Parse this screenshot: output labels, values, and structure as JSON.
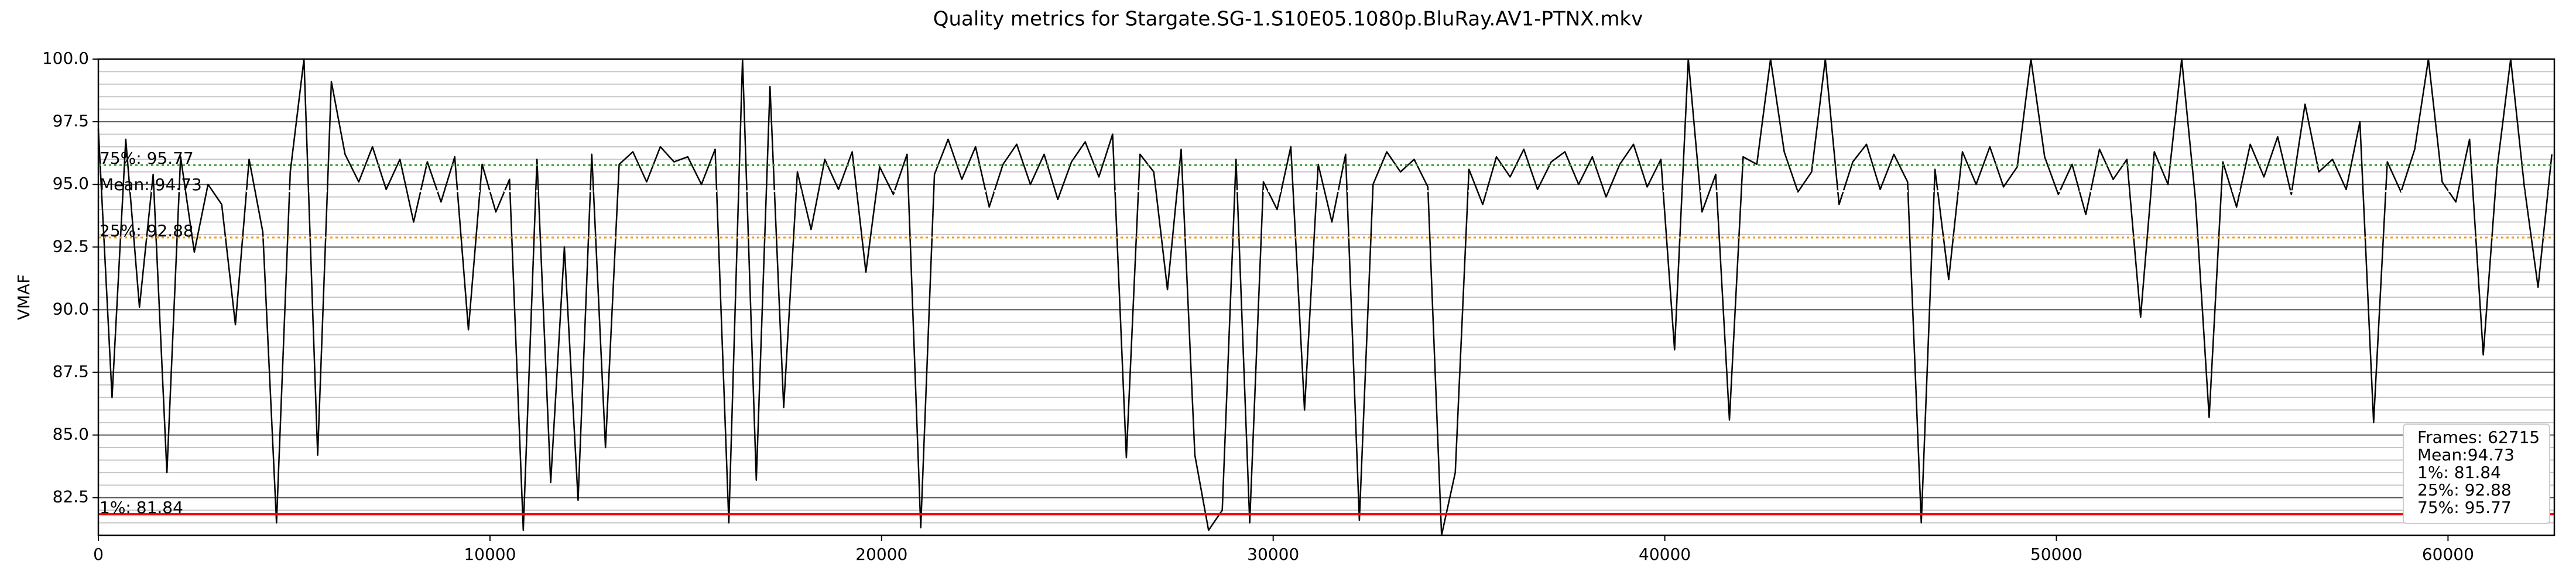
{
  "chart_data": {
    "type": "line",
    "title": "Quality metrics for Stargate.SG-1.S10E05.1080p.BluRay.AV1-PTNX.mkv",
    "y_label": "VMAF",
    "xlim": [
      0,
      62715
    ],
    "xticks": [
      0,
      10000,
      20000,
      30000,
      40000,
      50000,
      60000
    ],
    "ylim": [
      81,
      100
    ],
    "yticks": [
      82.5,
      {
        "value": 85,
        "label": "85.0"
      },
      87.5,
      {
        "value": 90,
        "label": "90.0"
      },
      92.5,
      {
        "value": 95,
        "label": "95.0"
      },
      97.5,
      {
        "value": 100,
        "label": "100.0"
      }
    ],
    "y_minor_ticks": [
      81.5,
      82,
      83,
      83.5,
      84,
      84.5,
      85.5,
      86,
      86.5,
      87,
      88,
      88.5,
      89,
      89.5,
      90.5,
      91,
      91.5,
      92,
      93,
      93.5,
      94,
      94.5,
      95.5,
      96,
      96.5,
      97,
      98,
      98.5,
      99,
      99.5
    ],
    "grid": true,
    "x": [
      0,
      350,
      700,
      1050,
      1400,
      1750,
      2100,
      2450,
      2800,
      3150,
      3500,
      3850,
      4200,
      4550,
      4900,
      5250,
      5600,
      5950,
      6300,
      6650,
      7000,
      7350,
      7700,
      8050,
      8400,
      8750,
      9100,
      9450,
      9800,
      10150,
      10500,
      10850,
      11200,
      11550,
      11900,
      12250,
      12600,
      12950,
      13300,
      13650,
      14000,
      14350,
      14700,
      15050,
      15400,
      15750,
      16100,
      16450,
      16800,
      17150,
      17500,
      17850,
      18200,
      18550,
      18900,
      19250,
      19600,
      19950,
      20300,
      20650,
      21000,
      21350,
      21700,
      22050,
      22400,
      22750,
      23100,
      23450,
      23800,
      24150,
      24500,
      24850,
      25200,
      25550,
      25900,
      26250,
      26600,
      26950,
      27300,
      27650,
      28000,
      28350,
      28700,
      29050,
      29400,
      29750,
      30100,
      30450,
      30800,
      31150,
      31500,
      31850,
      32200,
      32550,
      32900,
      33250,
      33600,
      33950,
      34300,
      34650,
      35000,
      35350,
      35700,
      36050,
      36400,
      36750,
      37100,
      37450,
      37800,
      38150,
      38500,
      38850,
      39200,
      39550,
      39900,
      40250,
      40600,
      40950,
      41300,
      41650,
      42000,
      42350,
      42700,
      43050,
      43400,
      43750,
      44100,
      44450,
      44800,
      45150,
      45500,
      45850,
      46200,
      46550,
      46900,
      47250,
      47600,
      47950,
      48300,
      48650,
      49000,
      49350,
      49700,
      50050,
      50400,
      50750,
      51100,
      51450,
      51800,
      52150,
      52500,
      52850,
      53200,
      53550,
      53900,
      54250,
      54600,
      54950,
      55300,
      55650,
      56000,
      56350,
      56700,
      57050,
      57400,
      57750,
      58100,
      58450,
      58800,
      59150,
      59500,
      59850,
      60200,
      60550,
      60900,
      61250,
      61600,
      61950,
      62300,
      62650
    ],
    "series": [
      {
        "color": "#000000",
        "values": [
          97.2,
          86.5,
          96.8,
          90.1,
          95.4,
          83.5,
          96.1,
          92.3,
          95.0,
          94.2,
          89.4,
          96.0,
          93.1,
          81.5,
          95.5,
          100,
          84.2,
          99.1,
          96.2,
          95.1,
          96.5,
          94.8,
          96.0,
          93.5,
          95.9,
          94.3,
          96.1,
          89.2,
          95.8,
          93.9,
          95.2,
          81.2,
          96.0,
          83.1,
          92.5,
          82.4,
          96.2,
          84.5,
          95.8,
          96.3,
          95.1,
          96.5,
          95.9,
          96.1,
          95.0,
          96.4,
          81.5,
          100,
          83.2,
          98.9,
          86.1,
          95.5,
          93.2,
          96.0,
          94.8,
          96.3,
          91.5,
          95.7,
          94.6,
          96.2,
          81.3,
          95.4,
          96.8,
          95.2,
          96.5,
          94.1,
          95.8,
          96.6,
          95.0,
          96.2,
          94.4,
          95.9,
          96.7,
          95.3,
          97.0,
          84.1,
          96.2,
          95.5,
          90.8,
          96.4,
          84.2,
          81.2,
          82.0,
          96.0,
          81.5,
          95.1,
          94.0,
          96.5,
          86.0,
          95.8,
          93.5,
          96.2,
          81.6,
          95.0,
          96.3,
          95.5,
          96.0,
          94.9,
          81.0,
          83.5,
          95.6,
          94.2,
          96.1,
          95.3,
          96.4,
          94.8,
          95.9,
          96.3,
          95.0,
          96.1,
          94.5,
          95.8,
          96.6,
          94.9,
          96.0,
          88.4,
          100,
          93.9,
          95.4,
          85.6,
          96.1,
          95.8,
          100,
          96.3,
          94.7,
          95.5,
          100,
          94.2,
          95.9,
          96.6,
          94.8,
          96.2,
          95.1,
          81.5,
          95.6,
          91.2,
          96.3,
          95.0,
          96.5,
          94.9,
          95.7,
          100,
          96.1,
          94.6,
          95.8,
          93.8,
          96.4,
          95.2,
          96.0,
          89.7,
          96.3,
          95.0,
          100,
          94.4,
          85.7,
          95.9,
          94.1,
          96.6,
          95.3,
          96.9,
          94.6,
          98.2,
          95.5,
          96.0,
          94.8,
          97.5,
          85.5,
          95.9,
          94.7,
          96.4,
          100,
          95.1,
          94.3,
          96.8,
          88.2,
          95.6,
          100,
          94.9,
          90.9,
          96.2
        ]
      }
    ],
    "reference_lines": [
      {
        "label": "75%: 95.77",
        "value": 95.77,
        "color": "#2ca02c",
        "style": "dotted"
      },
      {
        "label": "Mean: 94.73",
        "value": 94.73,
        "color": "#ffffff",
        "style": "dotted"
      },
      {
        "label": "25%: 92.88",
        "value": 92.88,
        "color": "#ff9900",
        "style": "dotted"
      },
      {
        "label": "1%: 81.84",
        "value": 81.84,
        "color": "#ff0000",
        "style": "solid"
      }
    ],
    "info_box": [
      "Frames: 62715",
      "Mean:94.73",
      "1%: 81.84",
      "25%: 92.88",
      "75%: 95.77"
    ]
  }
}
